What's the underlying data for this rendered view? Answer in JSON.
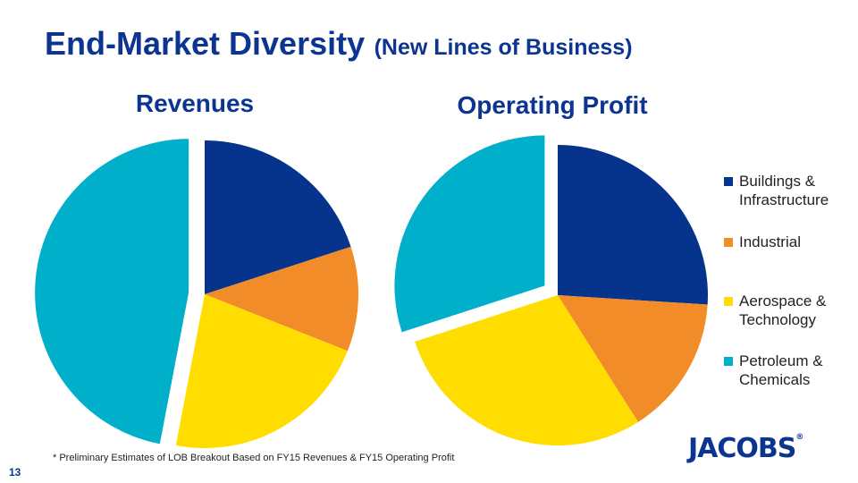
{
  "title": {
    "main": "End-Market Diversity",
    "sub": "(New Lines of Business)"
  },
  "colors": {
    "buildings": "#06348c",
    "industrial": "#f28c28",
    "aerospace": "#ffdd00",
    "petroleum": "#00b0ca",
    "title": "#0b3590"
  },
  "chart_data": [
    {
      "type": "pie",
      "title": "Revenues",
      "categories": [
        "Buildings & Infrastructure",
        "Industrial",
        "Aerospace & Technology",
        "Petroleum & Chemicals"
      ],
      "values": [
        20,
        11,
        22,
        47
      ],
      "exploded": "Petroleum & Chemicals",
      "legend": "none"
    },
    {
      "type": "pie",
      "title": "Operating Profit",
      "categories": [
        "Buildings & Infrastructure",
        "Industrial",
        "Aerospace & Technology",
        "Petroleum & Chemicals"
      ],
      "values": [
        26,
        15,
        29,
        30
      ],
      "exploded": "Petroleum & Chemicals",
      "legend": "right"
    }
  ],
  "legend": {
    "items": [
      {
        "label": "Buildings & Infrastructure",
        "color": "#06348c"
      },
      {
        "label": "Industrial",
        "color": "#f28c28"
      },
      {
        "label": "Aerospace & Technology",
        "color": "#ffdd00"
      },
      {
        "label": "Petroleum & Chemicals",
        "color": "#00b0ca"
      }
    ]
  },
  "footnote": "* Preliminary Estimates of LOB Breakout Based on FY15 Revenues & FY15 Operating Profit",
  "page_number": "13",
  "logo": {
    "text": "JACOBS",
    "mark": "®"
  }
}
